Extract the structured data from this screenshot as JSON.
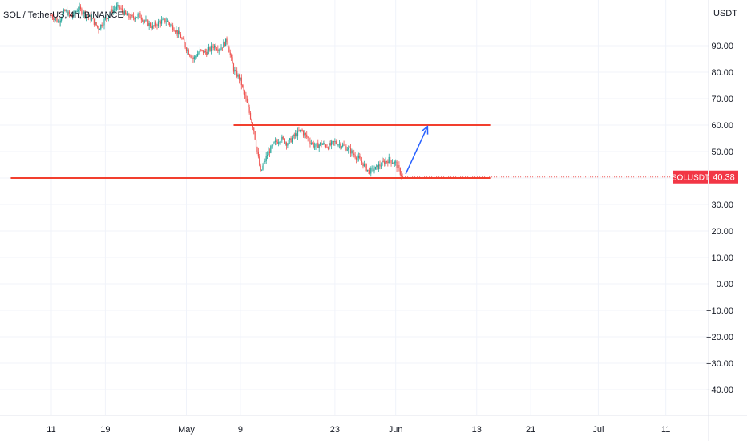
{
  "header": {
    "symbol_line": "SOL / TetherUS, 4h, BINANCE"
  },
  "price_axis": {
    "currency": "USDT",
    "badge_symbol": "SOLUSDT",
    "badge_price": "40.38"
  },
  "colors": {
    "up": "#26a69a",
    "down": "#ef5350",
    "drawing_line": "#f23f2e",
    "arrow": "#2962ff",
    "badge_bg": "#f23645",
    "grid": "#f0f3fa"
  },
  "chart_data": {
    "type": "candlestick",
    "title": "SOL / TetherUS, 4h, BINANCE",
    "ylim": [
      -47,
      103
    ],
    "y_ticks": [
      "90.00",
      "80.00",
      "70.00",
      "60.00",
      "50.00",
      "40.00",
      "30.00",
      "20.00",
      "10.00",
      "0.00",
      "−10.00",
      "−20.00",
      "−30.00",
      "−40.00"
    ],
    "y_tick_values": [
      90,
      80,
      70,
      60,
      50,
      40,
      30,
      20,
      10,
      0,
      -10,
      -20,
      -30,
      -40
    ],
    "x_ticks": [
      "11",
      "19",
      "May",
      "9",
      "23",
      "Jun",
      "13",
      "21",
      "Jul",
      "11"
    ],
    "x_tick_dates": [
      "2022-04-11",
      "2022-04-19",
      "2022-05-01",
      "2022-05-09",
      "2022-05-23",
      "2022-06-01",
      "2022-06-13",
      "2022-06-21",
      "2022-07-01",
      "2022-07-11"
    ],
    "x_range": [
      "2022-04-11",
      "2022-07-11"
    ],
    "grid": true,
    "last_price": 40.38,
    "price_path": [
      [
        "2022-04-11",
        101.5
      ],
      [
        "2022-04-12",
        99.0
      ],
      [
        "2022-04-13",
        103.0
      ],
      [
        "2022-04-14",
        101.0
      ],
      [
        "2022-04-15",
        104.0
      ],
      [
        "2022-04-16",
        102.0
      ],
      [
        "2022-04-17",
        100.0
      ],
      [
        "2022-04-18",
        96.5
      ],
      [
        "2022-04-19",
        100.0
      ],
      [
        "2022-04-20",
        103.5
      ],
      [
        "2022-04-21",
        104.5
      ],
      [
        "2022-04-22",
        101.5
      ],
      [
        "2022-04-23",
        100.5
      ],
      [
        "2022-04-24",
        101.5
      ],
      [
        "2022-04-25",
        99.0
      ],
      [
        "2022-04-26",
        97.0
      ],
      [
        "2022-04-27",
        99.0
      ],
      [
        "2022-04-28",
        99.5
      ],
      [
        "2022-04-29",
        97.0
      ],
      [
        "2022-04-30",
        94.0
      ],
      [
        "2022-05-01",
        89.0
      ],
      [
        "2022-05-02",
        85.0
      ],
      [
        "2022-05-03",
        88.0
      ],
      [
        "2022-05-04",
        87.5
      ],
      [
        "2022-05-05",
        90.0
      ],
      [
        "2022-05-06",
        89.0
      ],
      [
        "2022-05-07",
        92.0
      ],
      [
        "2022-05-08",
        81.0
      ],
      [
        "2022-05-09",
        77.0
      ],
      [
        "2022-05-10",
        68.0
      ],
      [
        "2022-05-11",
        58.0
      ],
      [
        "2022-05-12",
        42.0
      ],
      [
        "2022-05-13",
        49.0
      ],
      [
        "2022-05-14",
        53.0
      ],
      [
        "2022-05-15",
        55.0
      ],
      [
        "2022-05-16",
        53.0
      ],
      [
        "2022-05-17",
        56.0
      ],
      [
        "2022-05-18",
        58.0
      ],
      [
        "2022-05-19",
        55.0
      ],
      [
        "2022-05-20",
        52.0
      ],
      [
        "2022-05-21",
        53.0
      ],
      [
        "2022-05-22",
        52.0
      ],
      [
        "2022-05-23",
        53.5
      ],
      [
        "2022-05-24",
        52.5
      ],
      [
        "2022-05-25",
        51.0
      ],
      [
        "2022-05-26",
        48.5
      ],
      [
        "2022-05-27",
        46.0
      ],
      [
        "2022-05-28",
        42.5
      ],
      [
        "2022-05-29",
        43.5
      ],
      [
        "2022-05-30",
        45.5
      ],
      [
        "2022-05-31",
        47.0
      ],
      [
        "2022-06-01",
        45.5
      ],
      [
        "2022-06-02",
        40.38
      ]
    ],
    "drawings": {
      "resistance": {
        "y": 60,
        "x": [
          "2022-05-08",
          "2022-06-15"
        ]
      },
      "support": {
        "y": 40,
        "x": [
          "2022-04-05",
          "2022-06-15"
        ]
      },
      "arrow": {
        "from": [
          "2022-06-02",
          41.5
        ],
        "to": [
          "2022-06-05",
          59.5
        ]
      }
    }
  }
}
